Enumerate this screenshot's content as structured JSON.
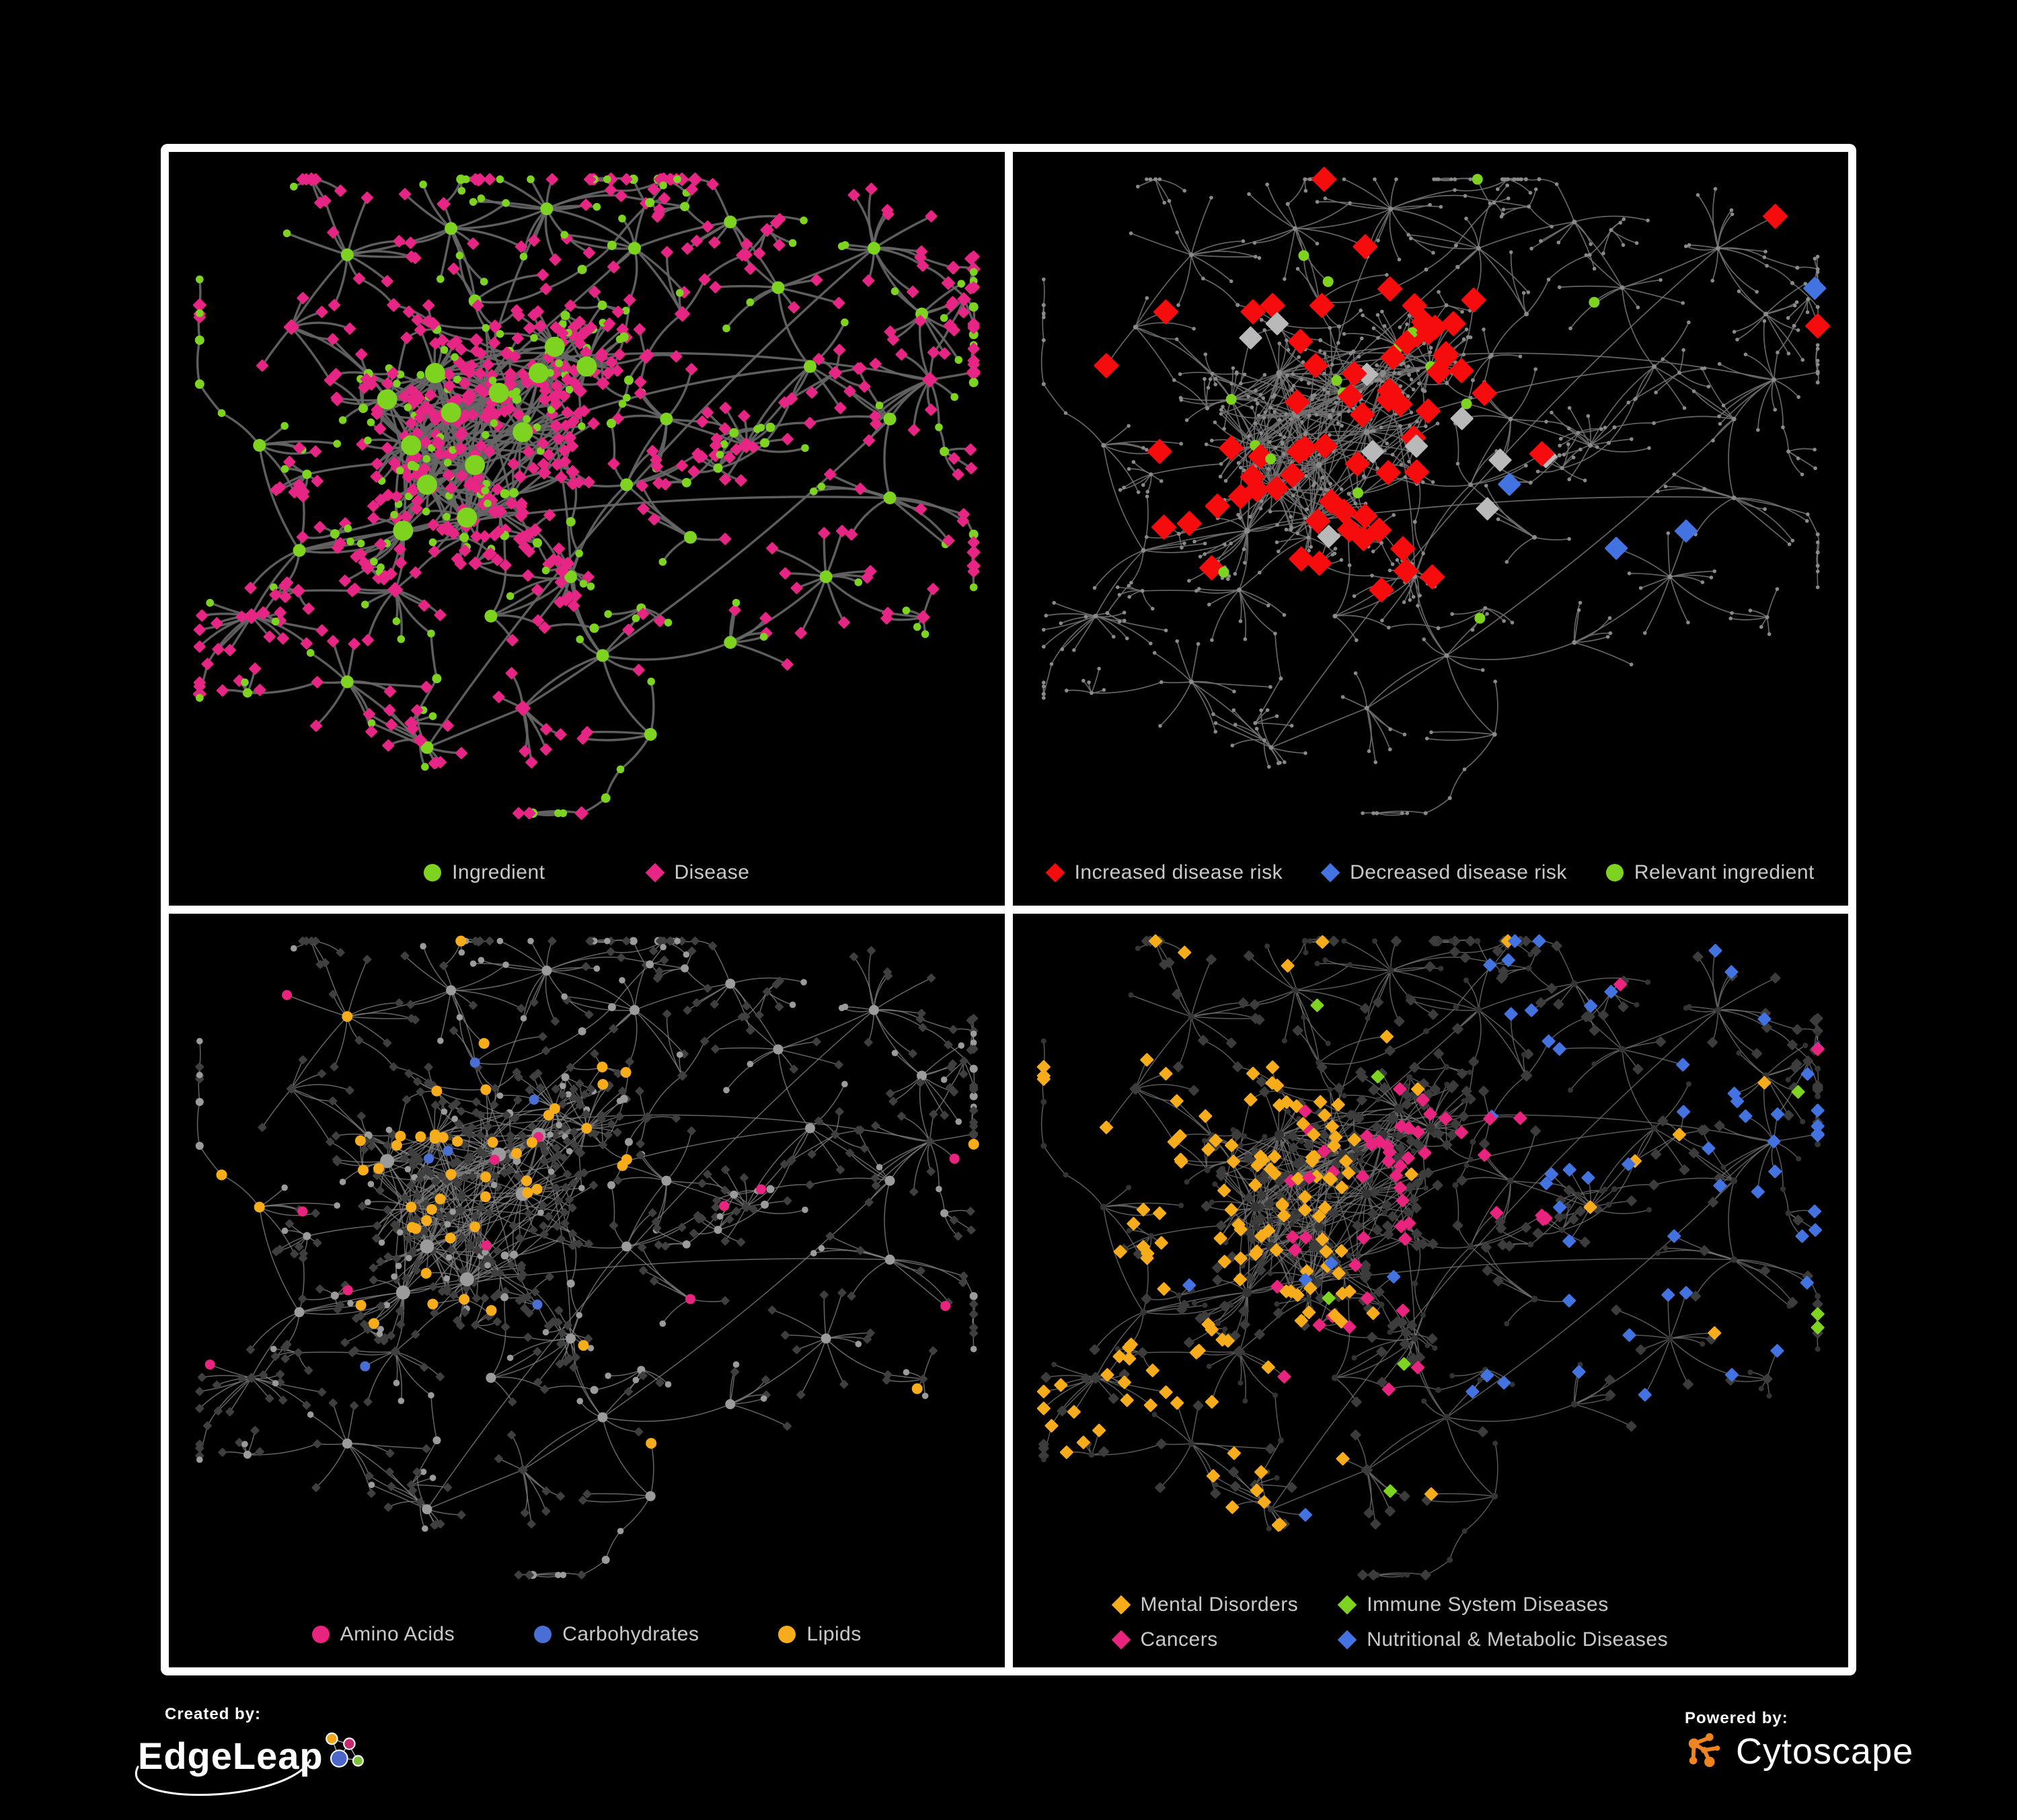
{
  "page": {
    "background": "#000000",
    "frame_color": "#ffffff"
  },
  "panels": [
    {
      "id": "ingredient-disease",
      "legend": [
        {
          "label": "Ingredient",
          "shape": "circle",
          "color": "#7ED321"
        },
        {
          "label": "Disease",
          "shape": "diamond",
          "color": "#E72584"
        }
      ],
      "style": {
        "edge": {
          "color": "#666666",
          "width": 3.4,
          "opacity": 0.92
        },
        "defaults": {
          "ingredient": {
            "shape": "circle",
            "color": "#7ED321",
            "sizes": {
              "core": 15,
              "hub": 9.5,
              "mid": 7,
              "leaf": 5.8
            }
          },
          "disease": {
            "shape": "diamond",
            "color": "#E72584",
            "sizes": {
              "core": 10,
              "hub": 8.5,
              "mid": 7.5,
              "leaf": 6.8
            }
          }
        },
        "highlights": []
      }
    },
    {
      "id": "disease-risk",
      "legend": [
        {
          "label": "Increased disease risk",
          "shape": "diamond",
          "color": "#F60C0C"
        },
        {
          "label": "Decreased disease risk",
          "shape": "diamond",
          "color": "#4273E0"
        },
        {
          "label": "Relevant ingredient",
          "shape": "circle",
          "color": "#7ED321"
        }
      ],
      "style": {
        "edge": {
          "color": "#707070",
          "width": 1.7,
          "opacity": 0.9
        },
        "defaults": {
          "ingredient": {
            "shape": "circle",
            "color": "#8A8A8A",
            "sizes": {
              "core": 4.5,
              "hub": 3.5,
              "mid": 3,
              "leaf": 2.8
            }
          },
          "disease": {
            "shape": "circle",
            "color": "#8A8A8A",
            "sizes": {
              "core": 4.5,
              "hub": 3.5,
              "mid": 3,
              "leaf": 2.8
            }
          }
        },
        "highlights": [
          {
            "on": "disease",
            "shape": "diamond",
            "color": "#F60C0C",
            "size": 13.5,
            "frac": 0.16,
            "bias": "core"
          },
          {
            "on": "disease",
            "shape": "diamond",
            "color": "#B9B9B9",
            "size": 12.5,
            "frac": 0.03,
            "bias": "core"
          },
          {
            "on": "disease",
            "shape": "diamond",
            "color": "#4273E0",
            "size": 12.5,
            "frac": 0.02,
            "bias": "right"
          },
          {
            "on": "ingredient",
            "shape": "circle",
            "color": "#7ED321",
            "size": 8,
            "frac": 0.12,
            "bias": "core"
          }
        ]
      }
    },
    {
      "id": "nutrient-classes",
      "legend": [
        {
          "label": "Amino Acids",
          "shape": "circle",
          "color": "#E8247E"
        },
        {
          "label": "Carbohydrates",
          "shape": "circle",
          "color": "#4A6FD4"
        },
        {
          "label": "Lipids",
          "shape": "circle",
          "color": "#F7AD1B"
        }
      ],
      "style": {
        "edge": {
          "color": "#7E7E7E",
          "width": 1.5,
          "opacity": 0.8
        },
        "defaults": {
          "ingredient": {
            "shape": "circle",
            "color": "#9B9B9B",
            "sizes": {
              "core": 10.5,
              "hub": 7.5,
              "mid": 6,
              "leaf": 4.8
            }
          },
          "disease": {
            "shape": "diamond",
            "color": "#3F3F3F",
            "sizes": {
              "core": 6,
              "hub": 5.5,
              "mid": 5,
              "leaf": 5
            }
          }
        },
        "highlights": [
          {
            "on": "ingredient",
            "shape": "circle",
            "color": "#F7AD1B",
            "size": 8,
            "frac": 0.45,
            "bias": "topcore"
          },
          {
            "on": "ingredient",
            "shape": "circle",
            "color": "#4A6FD4",
            "size": 7.5,
            "frac": 0.08,
            "bias": "topcore"
          },
          {
            "on": "ingredient",
            "shape": "circle",
            "color": "#E8247E",
            "size": 7.5,
            "frac": 0.07,
            "bias": "any"
          }
        ]
      }
    },
    {
      "id": "disease-classes",
      "legend": [
        {
          "label": "Mental Disorders",
          "shape": "diamond",
          "color": "#F7AD1B"
        },
        {
          "label": "Immune System Diseases",
          "shape": "diamond",
          "color": "#7ED321"
        },
        {
          "label": "Cancers",
          "shape": "diamond",
          "color": "#E8247E"
        },
        {
          "label": "Nutritional & Metabolic Diseases",
          "shape": "diamond",
          "color": "#4273E0"
        }
      ],
      "style": {
        "edge": {
          "color": "#6F6F6F",
          "width": 1.5,
          "opacity": 0.8
        },
        "defaults": {
          "ingredient": {
            "shape": "circle",
            "color": "#343434",
            "sizes": {
              "core": 7,
              "hub": 5,
              "mid": 4.5,
              "leaf": 4
            }
          },
          "disease": {
            "shape": "diamond",
            "color": "#3C3C3C",
            "sizes": {
              "core": 7,
              "hub": 6.5,
              "mid": 6,
              "leaf": 6
            }
          }
        },
        "highlights": [
          {
            "on": "disease",
            "shape": "diamond",
            "color": "#F7AD1B",
            "size": 7.5,
            "frac": 0.45,
            "bias": "left"
          },
          {
            "on": "disease",
            "shape": "diamond",
            "color": "#E8247E",
            "size": 7.5,
            "frac": 0.3,
            "bias": "center"
          },
          {
            "on": "disease",
            "shape": "diamond",
            "color": "#4273E0",
            "size": 7.5,
            "frac": 0.32,
            "bias": "right"
          },
          {
            "on": "disease",
            "shape": "diamond",
            "color": "#7ED321",
            "size": 7.5,
            "frac": 0.03,
            "bias": "any"
          }
        ]
      }
    }
  ],
  "footer": {
    "created_by": "Created by:",
    "edgeleap": "EdgeLeap",
    "powered_by": "Powered by:",
    "cytoscape": "Cytoscape",
    "edgeleap_colors": {
      "orange": "#F2A71B",
      "magenta": "#C42A6E",
      "blue": "#4A67C9",
      "green": "#7CC23A"
    },
    "cytoscape_color": "#EE8422"
  },
  "network": {
    "seed": 1337,
    "core_center": [
      0.36,
      0.4
    ],
    "core_hubs": [
      [
        0.28,
        0.42
      ],
      [
        0.33,
        0.37
      ],
      [
        0.3,
        0.48
      ],
      [
        0.36,
        0.45
      ],
      [
        0.25,
        0.35
      ],
      [
        0.31,
        0.31
      ],
      [
        0.39,
        0.34
      ],
      [
        0.35,
        0.53
      ],
      [
        0.27,
        0.55
      ],
      [
        0.42,
        0.4
      ],
      [
        0.46,
        0.27
      ],
      [
        0.5,
        0.3
      ],
      [
        0.44,
        0.31
      ]
    ],
    "satellite_hubs": [
      [
        0.13,
        0.24
      ],
      [
        0.2,
        0.13
      ],
      [
        0.33,
        0.09
      ],
      [
        0.45,
        0.06
      ],
      [
        0.56,
        0.12
      ],
      [
        0.68,
        0.08
      ],
      [
        0.62,
        0.22
      ],
      [
        0.74,
        0.18
      ],
      [
        0.86,
        0.12
      ],
      [
        0.92,
        0.22
      ],
      [
        0.78,
        0.3
      ],
      [
        0.88,
        0.38
      ],
      [
        0.7,
        0.42
      ],
      [
        0.6,
        0.38
      ],
      [
        0.55,
        0.48
      ],
      [
        0.63,
        0.56
      ],
      [
        0.48,
        0.62
      ],
      [
        0.38,
        0.68
      ],
      [
        0.26,
        0.64
      ],
      [
        0.14,
        0.58
      ],
      [
        0.09,
        0.42
      ],
      [
        0.52,
        0.74
      ],
      [
        0.42,
        0.82
      ],
      [
        0.3,
        0.88
      ],
      [
        0.58,
        0.86
      ],
      [
        0.68,
        0.72
      ],
      [
        0.8,
        0.62
      ],
      [
        0.88,
        0.5
      ],
      [
        0.2,
        0.78
      ],
      [
        0.08,
        0.68
      ],
      [
        0.93,
        0.32
      ],
      [
        0.36,
        0.2
      ]
    ],
    "core_cross_edges": 60
  }
}
